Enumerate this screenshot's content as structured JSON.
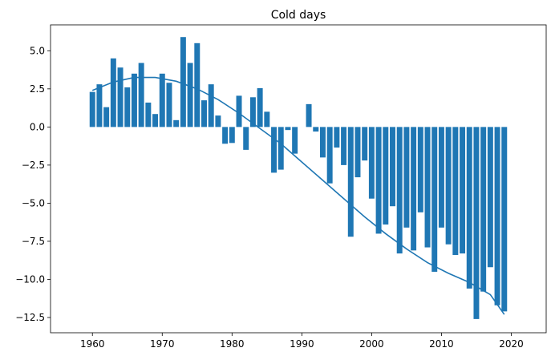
{
  "chart_data": {
    "type": "bar",
    "title": "Cold days",
    "xlabel": "",
    "ylabel": "",
    "xlim": [
      1954,
      2025
    ],
    "ylim": [
      -13.5,
      6.7
    ],
    "xticks": [
      1960,
      1970,
      1980,
      1990,
      2000,
      2010,
      2020
    ],
    "yticks": [
      -12.5,
      -10.0,
      -7.5,
      -5.0,
      -2.5,
      0.0,
      2.5,
      5.0
    ],
    "ytick_labels": [
      "−12.5",
      "−10.0",
      "−7.5",
      "−5.0",
      "−2.5",
      "0.0",
      "2.5",
      "5.0"
    ],
    "grid": false,
    "bar_color": "#1f77b4",
    "line_color": "#1f77b4",
    "x": [
      1960,
      1961,
      1962,
      1963,
      1964,
      1965,
      1966,
      1967,
      1968,
      1969,
      1970,
      1971,
      1972,
      1973,
      1974,
      1975,
      1976,
      1977,
      1978,
      1979,
      1980,
      1981,
      1982,
      1983,
      1984,
      1985,
      1986,
      1987,
      1988,
      1989,
      1990,
      1991,
      1992,
      1993,
      1994,
      1995,
      1996,
      1997,
      1998,
      1999,
      2000,
      2001,
      2002,
      2003,
      2004,
      2005,
      2006,
      2007,
      2008,
      2009,
      2010,
      2011,
      2012,
      2013,
      2014,
      2015,
      2016,
      2017,
      2018,
      2019
    ],
    "values": [
      2.3,
      2.8,
      1.3,
      4.5,
      3.9,
      2.6,
      3.5,
      4.2,
      1.6,
      0.85,
      3.5,
      2.9,
      0.45,
      5.9,
      4.2,
      5.5,
      1.75,
      2.8,
      0.75,
      -1.1,
      -1.05,
      2.05,
      -1.5,
      1.95,
      2.55,
      1.0,
      -3.0,
      -2.8,
      -0.2,
      -1.75,
      0.0,
      1.5,
      -0.3,
      -2.0,
      -3.7,
      -1.35,
      -2.5,
      -7.2,
      -3.3,
      -2.2,
      -4.7,
      -7.0,
      -6.4,
      -5.2,
      -8.3,
      -6.6,
      -8.1,
      -5.6,
      -7.9,
      -9.5,
      -6.6,
      -7.7,
      -8.4,
      -8.3,
      -10.6,
      -12.6,
      -10.8,
      -9.2,
      -11.7,
      -12.1
    ],
    "trend": {
      "x": [
        1960,
        1963,
        1966,
        1969,
        1972,
        1975,
        1978,
        1981,
        1984,
        1987,
        1990,
        1993,
        1996,
        1999,
        2002,
        2005,
        2008,
        2011,
        2014,
        2017,
        2019
      ],
      "y": [
        2.4,
        2.95,
        3.25,
        3.25,
        3.0,
        2.5,
        1.8,
        0.9,
        -0.1,
        -1.1,
        -2.3,
        -3.5,
        -4.7,
        -5.9,
        -7.0,
        -8.0,
        -8.9,
        -9.6,
        -10.2,
        -11.0,
        -12.3
      ]
    }
  }
}
